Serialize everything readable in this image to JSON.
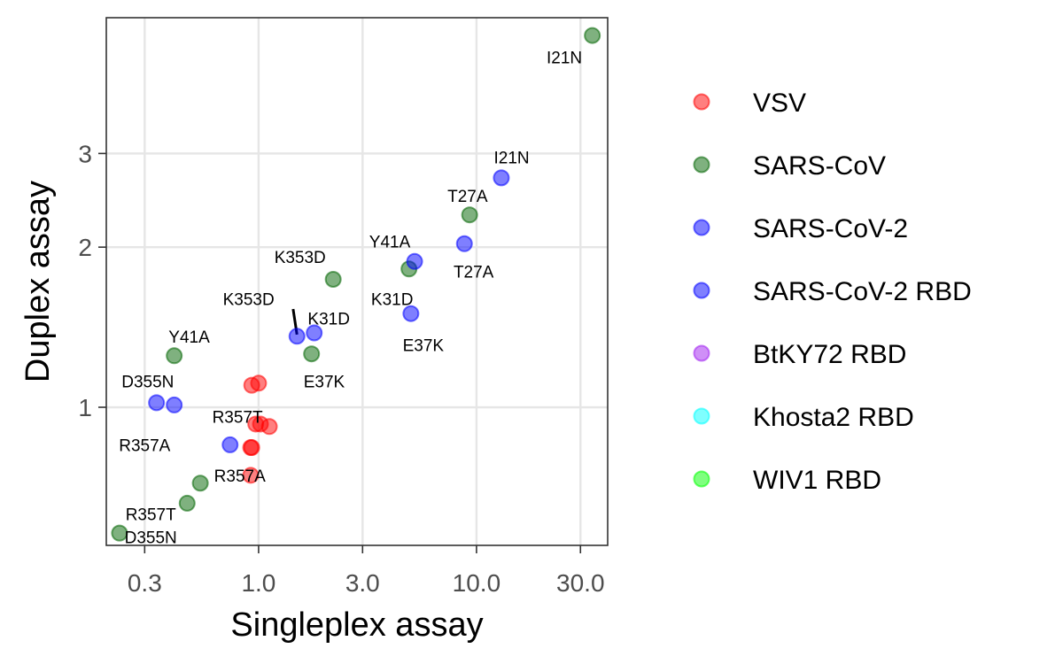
{
  "chart_data": {
    "type": "scatter",
    "xlabel": "Singleplex assay",
    "ylabel": "Duplex assay",
    "x_scale": "log10",
    "y_scale": "log10",
    "xlim": [
      0.2,
      40
    ],
    "ylim": [
      0.55,
      5.4
    ],
    "x_ticks": [
      0.3,
      1.0,
      3.0,
      10.0,
      30.0
    ],
    "x_tick_labels": [
      "0.3",
      "1.0",
      "3.0",
      "10.0",
      "30.0"
    ],
    "y_ticks": [
      1,
      2,
      3
    ],
    "y_tick_labels": [
      "1",
      "2",
      "3"
    ],
    "grid": true,
    "legend_position": "right",
    "series": [
      {
        "name": "VSV",
        "color": "#ff0000",
        "points": [
          {
            "x": 0.93,
            "y": 1.1
          },
          {
            "x": 1.0,
            "y": 1.11
          },
          {
            "x": 0.97,
            "y": 0.93
          },
          {
            "x": 1.02,
            "y": 0.93
          },
          {
            "x": 1.12,
            "y": 0.92
          },
          {
            "x": 0.93,
            "y": 0.84
          },
          {
            "x": 0.92,
            "y": 0.84
          },
          {
            "x": 0.92,
            "y": 0.745
          }
        ]
      },
      {
        "name": "SARS-CoV",
        "color": "#006400",
        "points": [
          {
            "x": 34.0,
            "y": 5.0
          },
          {
            "x": 9.3,
            "y": 2.3
          },
          {
            "x": 2.2,
            "y": 1.74
          },
          {
            "x": 4.9,
            "y": 1.82
          },
          {
            "x": 1.75,
            "y": 1.26
          },
          {
            "x": 0.41,
            "y": 1.25
          },
          {
            "x": 0.54,
            "y": 0.72
          },
          {
            "x": 0.47,
            "y": 0.66
          },
          {
            "x": 0.23,
            "y": 0.58
          }
        ]
      },
      {
        "name": "SARS-CoV-2",
        "color": "#0000ff",
        "points": [
          {
            "x": 13.0,
            "y": 2.7
          },
          {
            "x": 8.8,
            "y": 2.03
          },
          {
            "x": 5.2,
            "y": 1.88
          },
          {
            "x": 5.0,
            "y": 1.5
          },
          {
            "x": 1.8,
            "y": 1.38
          },
          {
            "x": 1.5,
            "y": 1.36
          },
          {
            "x": 0.34,
            "y": 1.02
          },
          {
            "x": 0.41,
            "y": 1.01
          },
          {
            "x": 0.74,
            "y": 0.85
          }
        ]
      },
      {
        "name": "SARS-CoV-2 RBD",
        "color": "#0000ff",
        "points": []
      },
      {
        "name": "BtKY72 RBD",
        "color": "#a020f0",
        "points": []
      },
      {
        "name": "Khosta2 RBD",
        "color": "#00ffff",
        "points": []
      },
      {
        "name": "WIV1 RBD",
        "color": "#00ff00",
        "points": []
      }
    ],
    "annotations": [
      {
        "text": "I21N",
        "x": 25.3,
        "y": 4.55
      },
      {
        "text": "I21N",
        "x": 14.5,
        "y": 2.95
      },
      {
        "text": "T27A",
        "x": 9.1,
        "y": 2.5
      },
      {
        "text": "T27A",
        "x": 9.7,
        "y": 1.8
      },
      {
        "text": "Y41A",
        "x": 4.0,
        "y": 2.05
      },
      {
        "text": "K353D",
        "x": 1.55,
        "y": 1.92
      },
      {
        "text": "K31D",
        "x": 4.1,
        "y": 1.6
      },
      {
        "text": "K353D",
        "x": 0.9,
        "y": 1.6
      },
      {
        "text": "K31D",
        "x": 2.1,
        "y": 1.47
      },
      {
        "text": "E37K",
        "x": 5.7,
        "y": 1.31
      },
      {
        "text": "Y41A",
        "x": 0.48,
        "y": 1.36
      },
      {
        "text": "E37K",
        "x": 2.0,
        "y": 1.12
      },
      {
        "text": "D355N",
        "x": 0.31,
        "y": 1.12
      },
      {
        "text": "R357A",
        "x": 0.3,
        "y": 0.85
      },
      {
        "text": "R357T",
        "x": 0.8,
        "y": 0.96
      },
      {
        "text": "R357A",
        "x": 0.82,
        "y": 0.745
      },
      {
        "text": "R357T",
        "x": 0.32,
        "y": 0.63
      },
      {
        "text": "D355N",
        "x": 0.32,
        "y": 0.57
      }
    ],
    "connector_segments": [
      {
        "x1": 1.44,
        "y1": 1.53,
        "x2": 1.5,
        "y2": 1.37
      }
    ]
  }
}
